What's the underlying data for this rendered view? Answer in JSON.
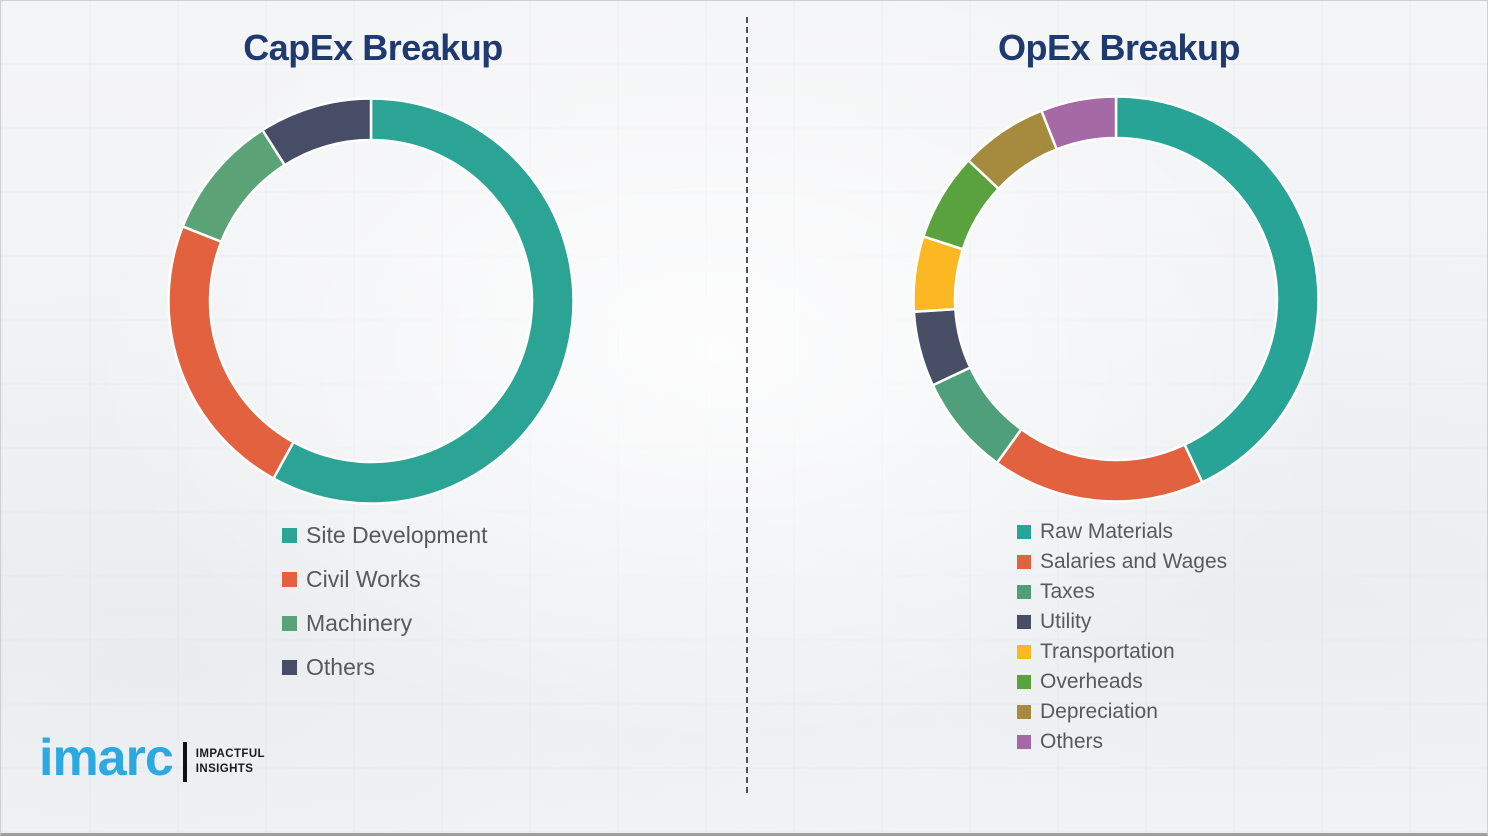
{
  "chart_data": [
    {
      "type": "pie",
      "subtype": "donut",
      "title": "CapEx Breakup",
      "labels": [
        "Site Development",
        "Civil Works",
        "Machinery",
        "Others"
      ],
      "values": [
        58,
        23,
        10,
        9
      ],
      "values_note": "percent, estimated from arc angles (no data labels shown)",
      "colors": [
        "#2BA495",
        "#E2613E",
        "#5BA277",
        "#474D66"
      ],
      "start_angle_deg": 0,
      "direction": "clockwise",
      "legend_position": "below-left",
      "title_color": "#1E3A6E",
      "legend_text_color": "#595959"
    },
    {
      "type": "pie",
      "subtype": "donut",
      "title": "OpEx Breakup",
      "labels": [
        "Raw Materials",
        "Salaries and Wages",
        "Taxes",
        "Utility",
        "Transportation",
        "Overheads",
        "Depreciation",
        "Others"
      ],
      "values": [
        43,
        17,
        8,
        6,
        6,
        7,
        7,
        6
      ],
      "values_note": "percent, estimated from arc angles (no data labels shown)",
      "colors": [
        "#27A496",
        "#E2613E",
        "#4FA07A",
        "#474E66",
        "#FBB823",
        "#5AA23E",
        "#A68A3E",
        "#A56AA5"
      ],
      "start_angle_deg": 0,
      "direction": "clockwise",
      "legend_position": "below-left",
      "title_color": "#1E3A6E",
      "legend_text_color": "#595959"
    }
  ],
  "logo": {
    "brand": "imarc",
    "tagline_line1": "IMPACTFUL",
    "tagline_line2": "INSIGHTS",
    "brand_color": "#2CA9E1"
  }
}
